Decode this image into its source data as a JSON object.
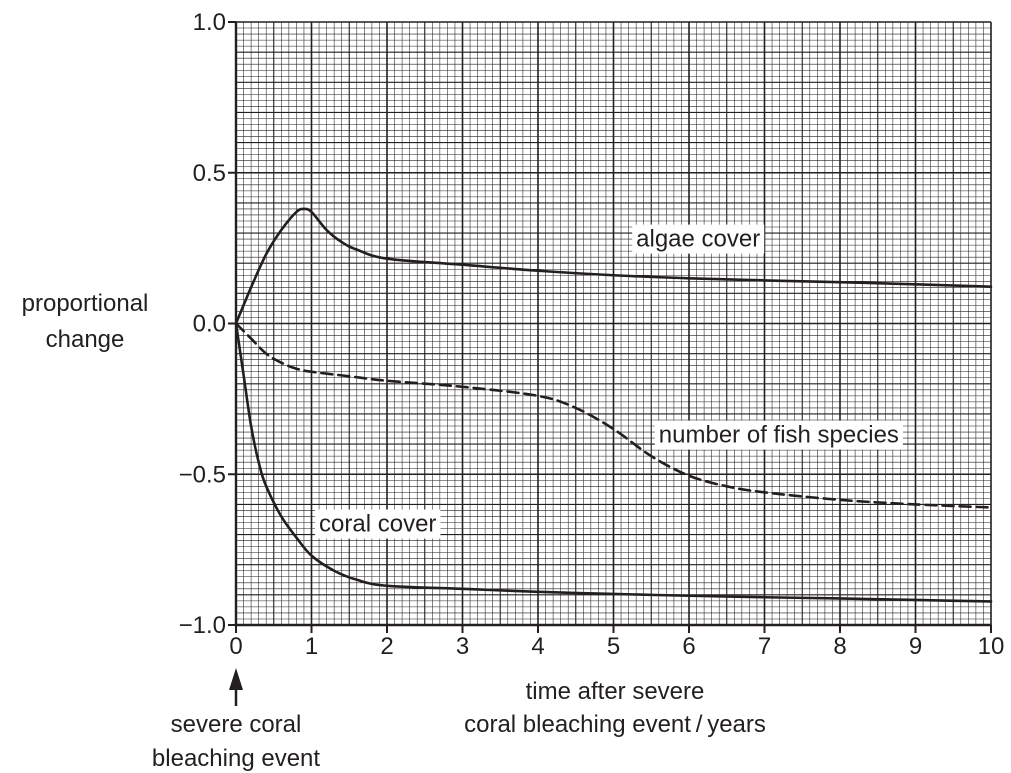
{
  "chart_data": {
    "type": "line",
    "title": "",
    "xlabel_lines": [
      "time after severe",
      "coral bleaching event / years"
    ],
    "ylabel_lines": [
      "proportional",
      "change"
    ],
    "xlim": [
      0,
      10
    ],
    "ylim": [
      -1.0,
      1.0
    ],
    "x_ticks": [
      0,
      1,
      2,
      3,
      4,
      5,
      6,
      7,
      8,
      9,
      10
    ],
    "x_tick_labels": [
      "0",
      "1",
      "2",
      "3",
      "4",
      "5",
      "6",
      "7",
      "8",
      "9",
      "10"
    ],
    "y_ticks": [
      -1.0,
      -0.5,
      0.0,
      0.5,
      1.0
    ],
    "y_tick_labels": [
      "−1.0",
      "−0.5",
      "0.0",
      "0.5",
      "1.0"
    ],
    "grid": "on (fine graph-paper grid)",
    "event_annotation": {
      "x": 0,
      "lines": [
        "severe coral",
        "bleaching event"
      ]
    },
    "series": [
      {
        "name": "algae cover",
        "style": "solid",
        "x": [
          0,
          0.2,
          0.4,
          0.6,
          0.8,
          0.9,
          1.0,
          1.2,
          1.4,
          1.6,
          2.0,
          3.0,
          4.0,
          5.0,
          6.0,
          7.0,
          8.0,
          9.0,
          10.0
        ],
        "y": [
          0,
          0.12,
          0.23,
          0.31,
          0.37,
          0.38,
          0.37,
          0.31,
          0.27,
          0.245,
          0.215,
          0.195,
          0.175,
          0.16,
          0.15,
          0.143,
          0.137,
          0.13,
          0.122
        ]
      },
      {
        "name": "number of fish species",
        "style": "dashed",
        "x": [
          0,
          0.2,
          0.4,
          0.6,
          0.8,
          1.0,
          1.5,
          2.0,
          3.0,
          4.0,
          4.5,
          5.0,
          5.5,
          6.0,
          6.5,
          7.0,
          8.0,
          9.0,
          10.0
        ],
        "y": [
          0,
          -0.05,
          -0.1,
          -0.13,
          -0.15,
          -0.16,
          -0.175,
          -0.19,
          -0.21,
          -0.24,
          -0.28,
          -0.35,
          -0.44,
          -0.505,
          -0.54,
          -0.56,
          -0.585,
          -0.6,
          -0.61
        ]
      },
      {
        "name": "coral cover",
        "style": "solid",
        "x": [
          0,
          0.1,
          0.2,
          0.3,
          0.4,
          0.6,
          0.8,
          1.0,
          1.3,
          1.6,
          2.0,
          3.0,
          4.0,
          5.0,
          6.0,
          7.0,
          8.0,
          9.0,
          10.0
        ],
        "y": [
          0,
          -0.17,
          -0.34,
          -0.46,
          -0.54,
          -0.64,
          -0.71,
          -0.77,
          -0.82,
          -0.85,
          -0.87,
          -0.88,
          -0.89,
          -0.897,
          -0.903,
          -0.908,
          -0.912,
          -0.917,
          -0.922
        ]
      }
    ],
    "series_label_anchors": [
      {
        "series": 0,
        "x": 5.3,
        "y": 0.255
      },
      {
        "series": 1,
        "x": 5.6,
        "y": -0.395
      },
      {
        "series": 2,
        "x": 1.1,
        "y": -0.69
      }
    ],
    "colors": {
      "ink": "#231f20",
      "grid_minor": "#231f20",
      "background": "#ffffff"
    }
  }
}
